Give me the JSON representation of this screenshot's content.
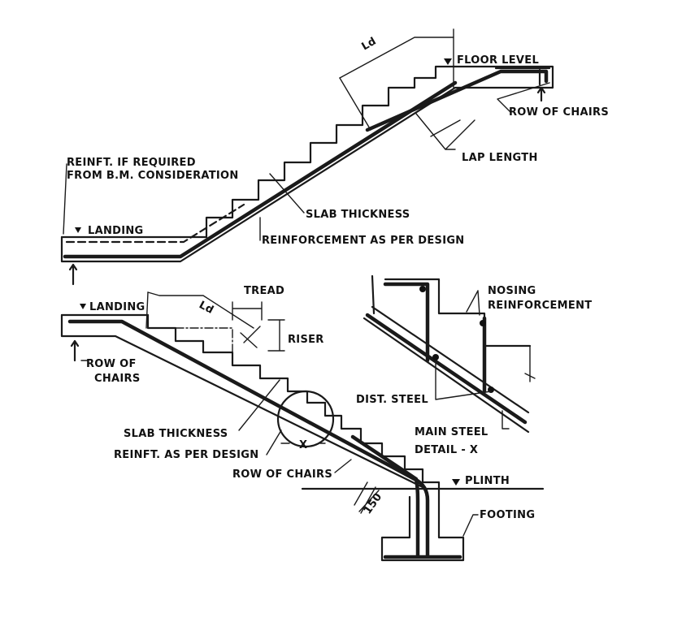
{
  "labels": {
    "ld_top": "Ld",
    "floor_level": "FLOOR LEVEL",
    "row_of_chairs_top": "ROW OF CHAIRS",
    "lap_length": "LAP LENGTH",
    "reinft_if_required_1": "REINFT. IF REQUIRED",
    "reinft_if_required_2": "FROM B.M. CONSIDERATION",
    "landing_top": "LANDING",
    "slab_thickness_top": "SLAB THICKNESS",
    "reinforcement_as_per_design": "REINFORCEMENT AS PER DESIGN",
    "tread": "TREAD",
    "landing_bottom": "LANDING",
    "ld_bottom": "Ld",
    "riser": "RISER",
    "row_of_chairs_left_1": "ROW OF",
    "row_of_chairs_left_2": "CHAIRS",
    "slab_thickness_bottom": "SLAB THICKNESS",
    "reinft_as_per_design": "REINFT. AS PER DESIGN",
    "x_mark": "X",
    "row_of_chairs_bottom": "ROW OF CHAIRS",
    "dim_150": "150",
    "plinth": "PLINTH",
    "footing": "FOOTING",
    "nosing_1": "NOSING",
    "nosing_2": "REINFORCEMENT",
    "dist_steel": "DIST. STEEL",
    "main_steel": "MAIN STEEL",
    "detail_x": "DETAIL - X"
  }
}
